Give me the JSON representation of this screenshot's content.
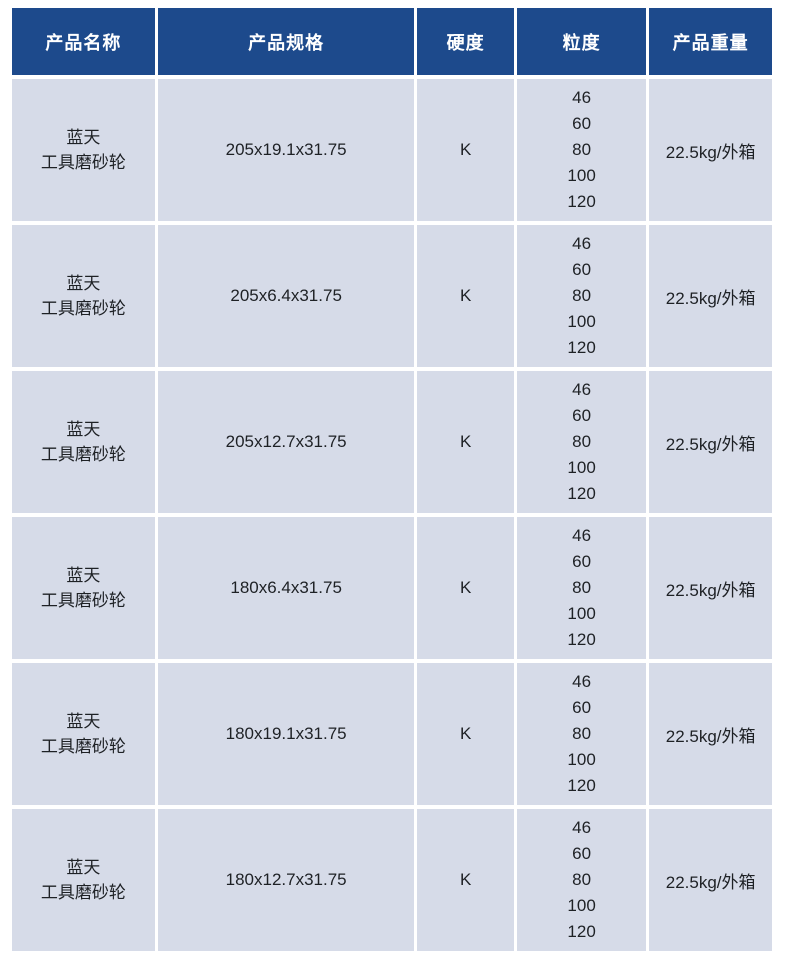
{
  "colors": {
    "header_bg": "#1d4a8c",
    "header_text": "#ffffff",
    "cell_bg": "#d6dbe8",
    "body_text": "#1e2125",
    "page_bg": "#ffffff"
  },
  "table": {
    "columns": [
      {
        "key": "name",
        "label": "产品名称"
      },
      {
        "key": "spec",
        "label": "产品规格"
      },
      {
        "key": "hardness",
        "label": "硬度"
      },
      {
        "key": "grit",
        "label": "粒度"
      },
      {
        "key": "weight",
        "label": "产品重量"
      }
    ],
    "rows": [
      {
        "name": "蓝天\n工具磨砂轮",
        "spec": "205x19.1x31.75",
        "hardness": "K",
        "grit": "46\n60\n80\n100\n120",
        "weight": "22.5kg/外箱"
      },
      {
        "name": "蓝天\n工具磨砂轮",
        "spec": "205x6.4x31.75",
        "hardness": "K",
        "grit": "46\n60\n80\n100\n120",
        "weight": "22.5kg/外箱"
      },
      {
        "name": "蓝天\n工具磨砂轮",
        "spec": "205x12.7x31.75",
        "hardness": "K",
        "grit": "46\n60\n80\n100\n120",
        "weight": "22.5kg/外箱"
      },
      {
        "name": "蓝天\n工具磨砂轮",
        "spec": "180x6.4x31.75",
        "hardness": "K",
        "grit": "46\n60\n80\n100\n120",
        "weight": "22.5kg/外箱"
      },
      {
        "name": "蓝天\n工具磨砂轮",
        "spec": "180x19.1x31.75",
        "hardness": "K",
        "grit": "46\n60\n80\n100\n120",
        "weight": "22.5kg/外箱"
      },
      {
        "name": "蓝天\n工具磨砂轮",
        "spec": "180x12.7x31.75",
        "hardness": "K",
        "grit": "46\n60\n80\n100\n120",
        "weight": "22.5kg/外箱"
      }
    ]
  }
}
